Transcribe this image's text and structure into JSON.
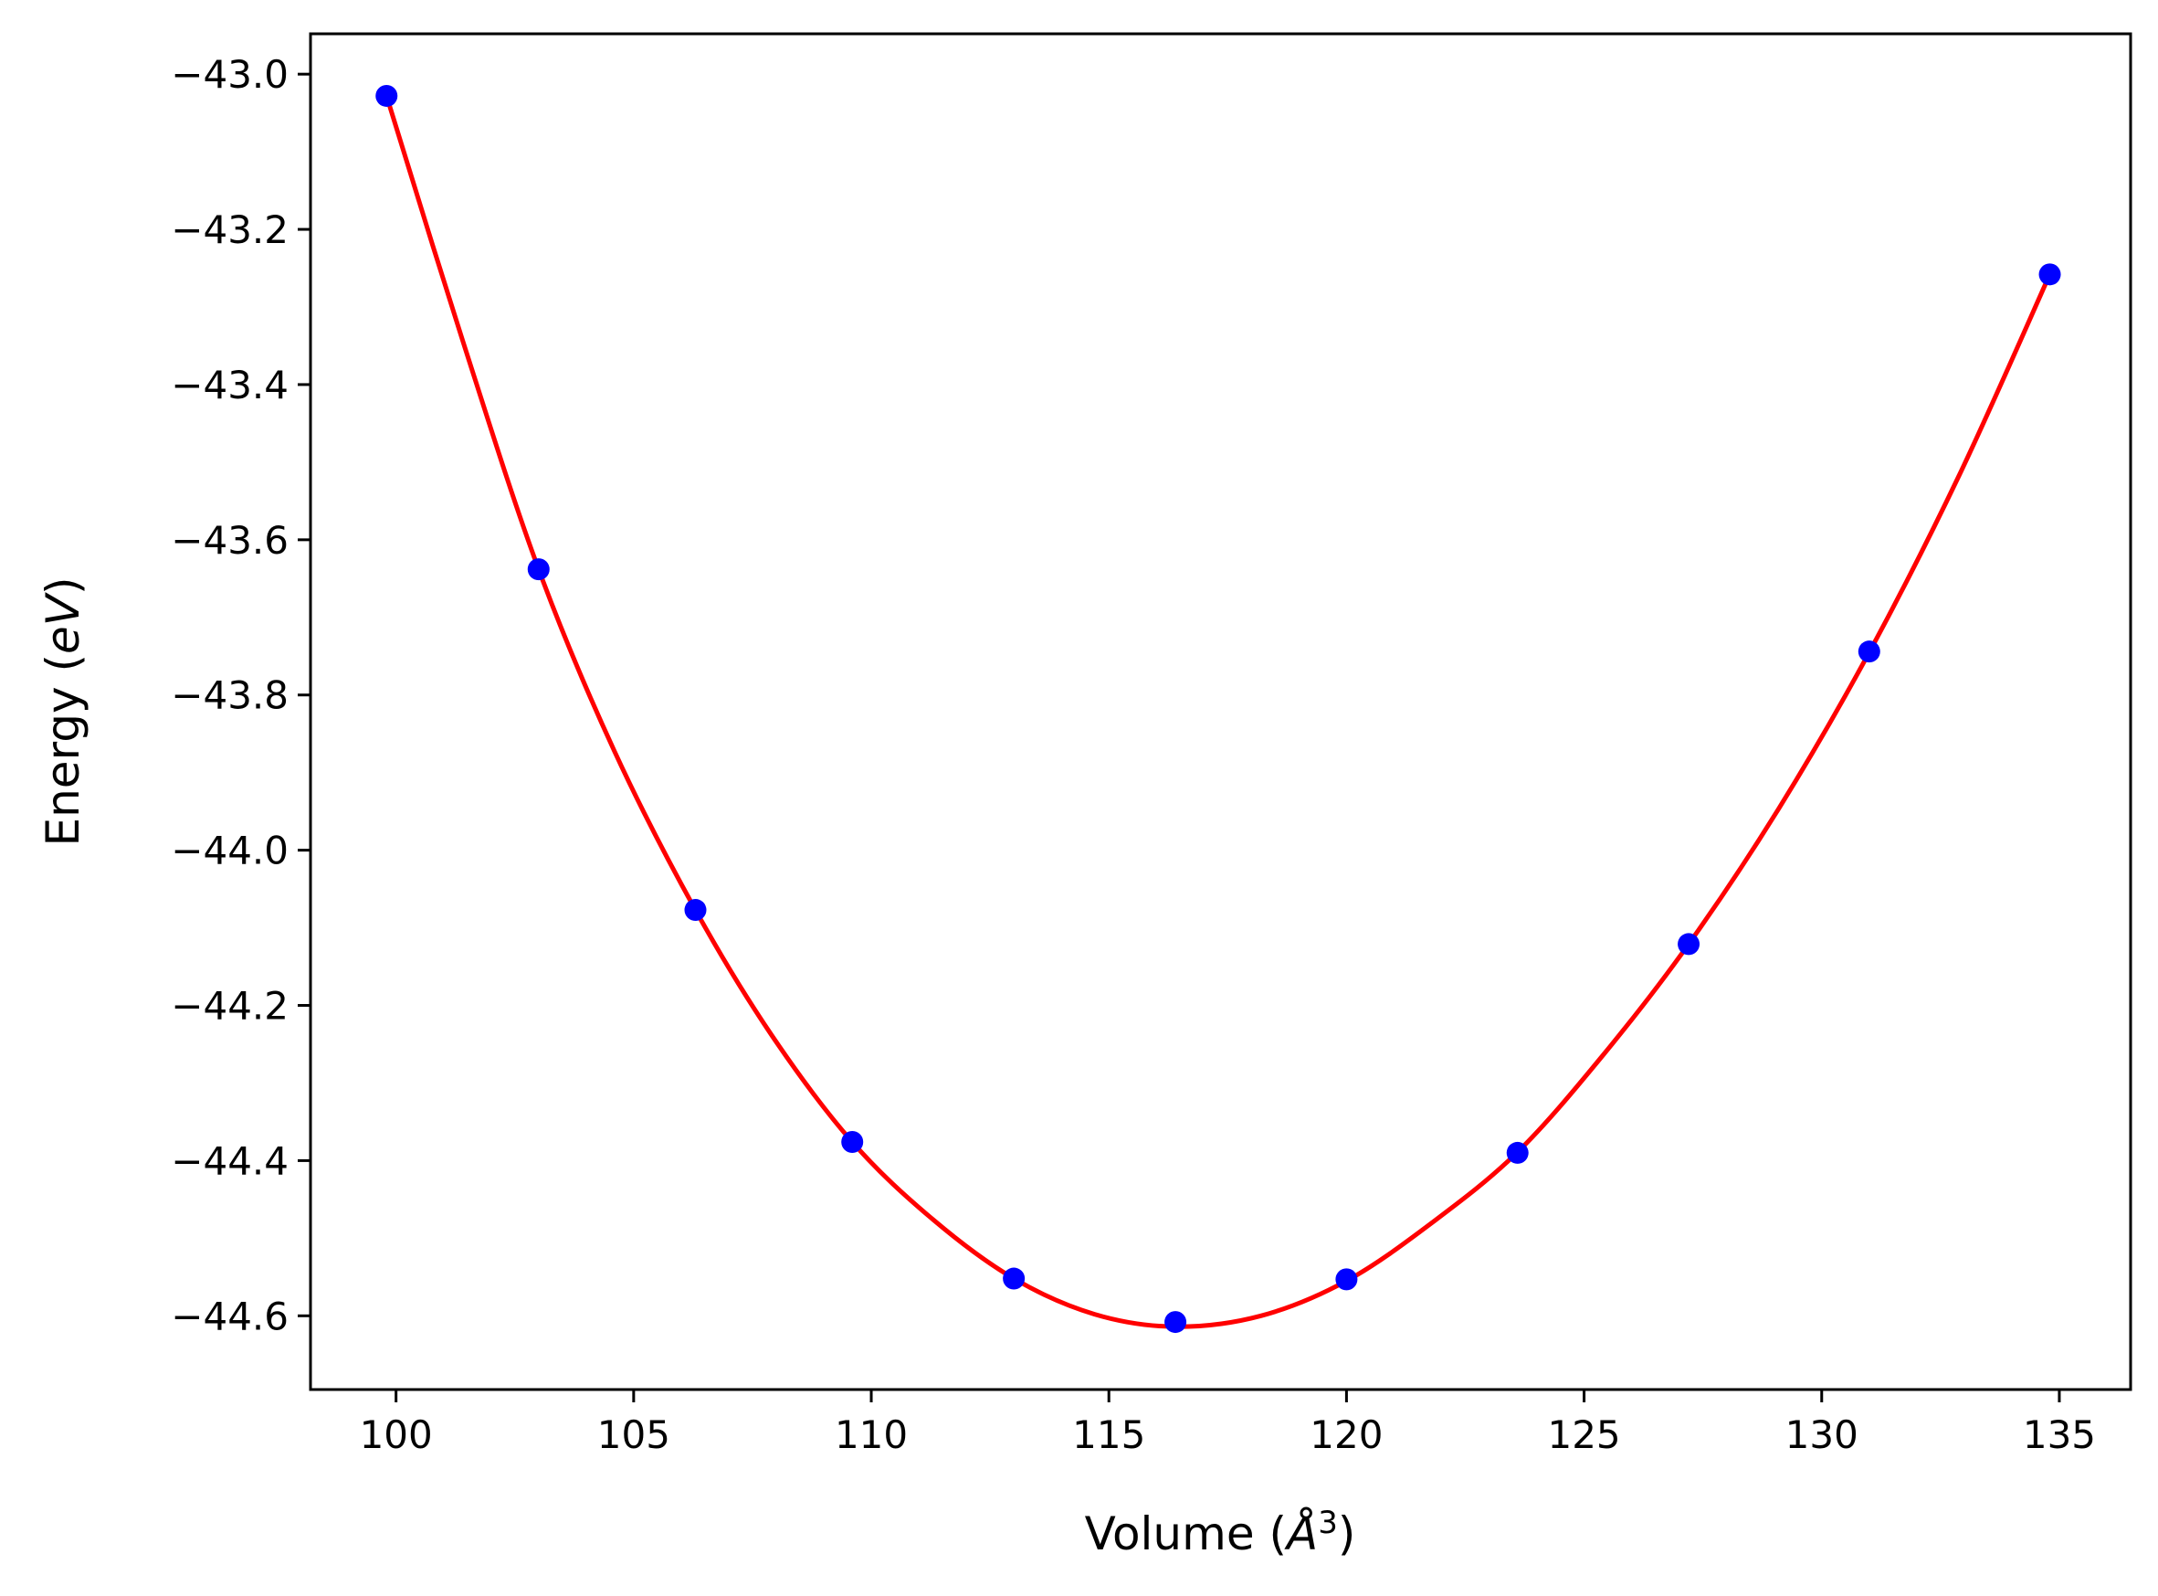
{
  "chart_data": {
    "type": "scatter",
    "title": "",
    "xlabel_main": "Volume (",
    "xlabel_unit": "Å",
    "xlabel_sup": "3",
    "xlabel_close": ")",
    "ylabel_main": "Energy (",
    "ylabel_unit": "eV",
    "ylabel_close": ")",
    "xlim": [
      98.2,
      136.5
    ],
    "ylim": [
      -44.695,
      -42.948
    ],
    "grid": false,
    "xticks": [
      100,
      105,
      110,
      115,
      120,
      125,
      130,
      135
    ],
    "xtick_labels": [
      "100",
      "105",
      "110",
      "115",
      "120",
      "125",
      "130",
      "135"
    ],
    "yticks": [
      -43.0,
      -43.2,
      -43.4,
      -43.6,
      -43.8,
      -44.0,
      -44.2,
      -44.4,
      -44.6
    ],
    "ytick_labels": [
      "−43.0",
      "−43.2",
      "−43.4",
      "−43.6",
      "−43.8",
      "−44.0",
      "−44.2",
      "−44.4",
      "−44.6"
    ],
    "series": [
      {
        "kind": "points",
        "color": "#0000ff",
        "x": [
          99.8,
          103.0,
          106.3,
          109.6,
          113.0,
          116.4,
          120.0,
          123.6,
          127.2,
          131.0,
          134.8
        ],
        "y": [
          -43.028,
          -43.638,
          -44.077,
          -44.376,
          -44.552,
          -44.608,
          -44.553,
          -44.39,
          -44.121,
          -43.744,
          -43.258
        ]
      },
      {
        "kind": "fit",
        "color": "#ff0000",
        "x": [
          99.8,
          101.4,
          103.0,
          104.6,
          106.3,
          107.9,
          109.6,
          111.3,
          113.0,
          114.7,
          116.4,
          118.2,
          120.0,
          121.8,
          123.6,
          125.4,
          127.2,
          129.1,
          131.0,
          132.9,
          134.8
        ],
        "y": [
          -43.028,
          -43.343,
          -43.638,
          -43.873,
          -44.077,
          -44.238,
          -44.376,
          -44.476,
          -44.552,
          -44.598,
          -44.614,
          -44.6,
          -44.555,
          -44.48,
          -44.389,
          -44.264,
          -44.121,
          -43.946,
          -43.745,
          -43.516,
          -43.258
        ]
      }
    ]
  }
}
